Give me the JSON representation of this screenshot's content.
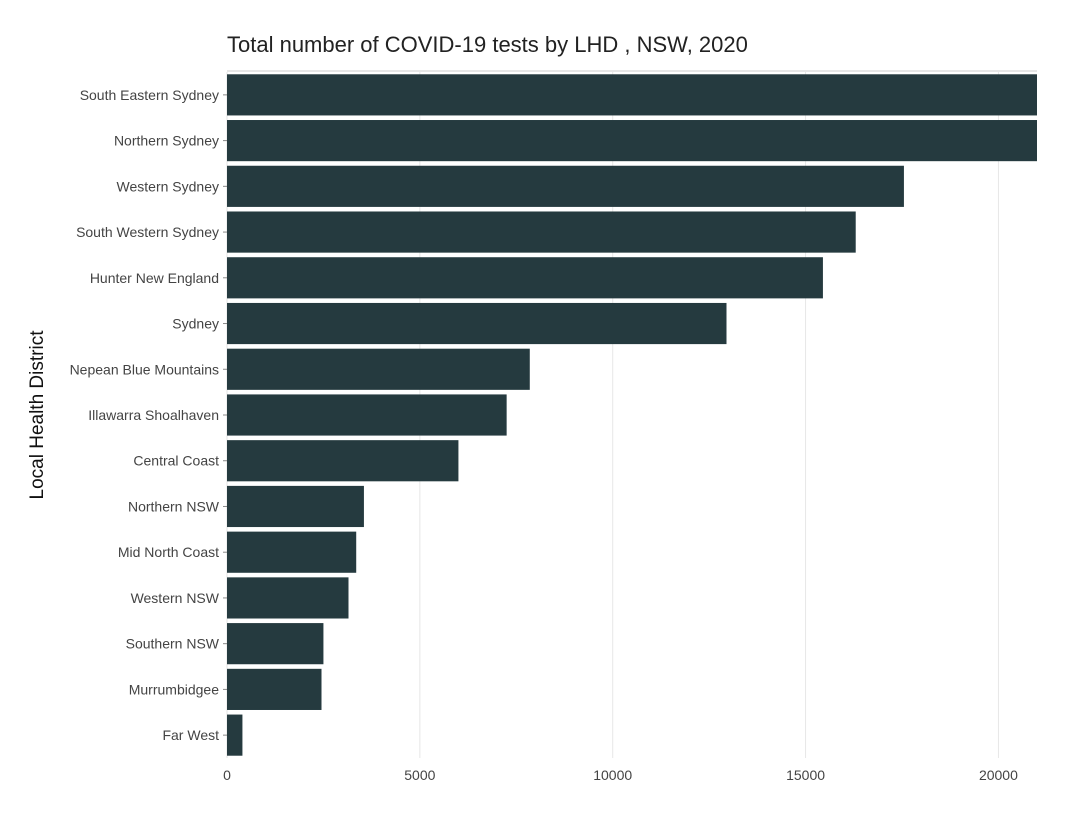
{
  "chart_data": {
    "type": "bar",
    "orientation": "horizontal",
    "title": "Total number of COVID-19 tests by LHD , NSW, 2020",
    "xlabel": "",
    "ylabel": "Local Health District",
    "categories": [
      "South Eastern Sydney",
      "Northern Sydney",
      "Western Sydney",
      "South Western Sydney",
      "Hunter New England",
      "Sydney",
      "Nepean Blue Mountains",
      "Illawarra Shoalhaven",
      "Central Coast",
      "Northern NSW",
      "Mid North Coast",
      "Western NSW",
      "Southern NSW",
      "Murrumbidgee",
      "Far West"
    ],
    "values": [
      21000,
      21000,
      17550,
      16300,
      15450,
      12950,
      7850,
      7250,
      6000,
      3550,
      3350,
      3150,
      2500,
      2450,
      400
    ],
    "xlim": [
      0,
      21000
    ],
    "xticks": [
      0,
      5000,
      10000,
      15000,
      20000
    ],
    "grid": true,
    "colors": {
      "bar": "#253a3f",
      "grid": "#e6e6e6",
      "text": "#444444"
    }
  }
}
